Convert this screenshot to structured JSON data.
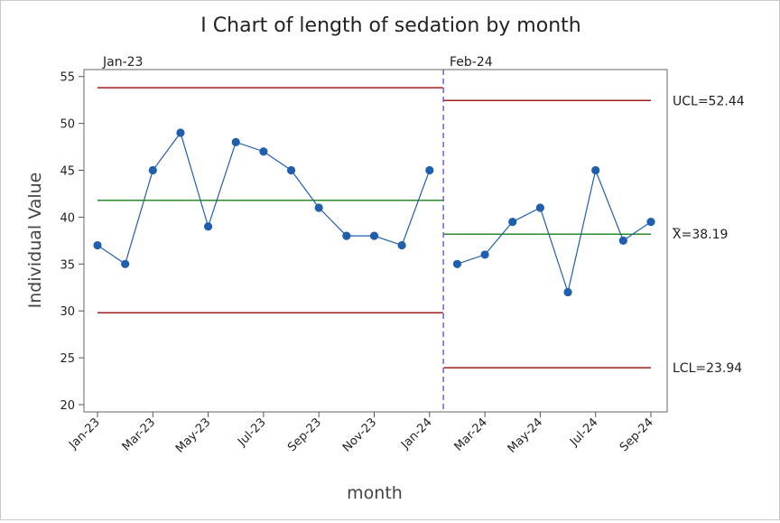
{
  "chart_data": {
    "type": "line",
    "title": "I Chart of length of sedation by month",
    "xlabel": "month",
    "ylabel": "Individual Value",
    "ylim": [
      20,
      55
    ],
    "yticks": [
      20,
      25,
      30,
      35,
      40,
      45,
      50,
      55
    ],
    "x": [
      "Jan-23",
      "Feb-23",
      "Mar-23",
      "Apr-23",
      "May-23",
      "Jun-23",
      "Jul-23",
      "Aug-23",
      "Sep-23",
      "Oct-23",
      "Nov-23",
      "Dec-23",
      "Jan-24",
      "Feb-24",
      "Mar-24",
      "Apr-24",
      "May-24",
      "Jun-24",
      "Jul-24",
      "Aug-24",
      "Sep-24"
    ],
    "xtick_labels": [
      "Jan-23",
      "Mar-23",
      "May-23",
      "Jul-23",
      "Sep-23",
      "Nov-23",
      "Jan-24",
      "Mar-24",
      "May-24",
      "Jul-24",
      "Sep-24"
    ],
    "values": [
      37,
      35,
      45,
      49,
      39,
      48,
      47,
      45,
      41,
      38,
      38,
      37,
      45,
      35,
      36,
      39.5,
      41,
      32,
      45,
      37.5,
      39.5
    ],
    "stages": [
      {
        "label": "Jan-23",
        "start": "Jan-23",
        "end": "Jan-24",
        "ucl": 53.8,
        "center": 41.8,
        "lcl": 29.8
      },
      {
        "label": "Feb-24",
        "start": "Feb-24",
        "end": "Sep-24",
        "ucl": 52.44,
        "center": 38.19,
        "lcl": 23.94
      }
    ],
    "limit_labels": {
      "ucl": "UCL=52.44",
      "center_bar": "_",
      "center": "X=38.19",
      "lcl": "LCL=23.94"
    },
    "grid": false,
    "colors": {
      "series": "#1f5fad",
      "ucl_lcl": "#a01c1c",
      "center": "#2a8a2a",
      "stage_divider": "#7b5ad6",
      "axis": "#555555"
    }
  }
}
